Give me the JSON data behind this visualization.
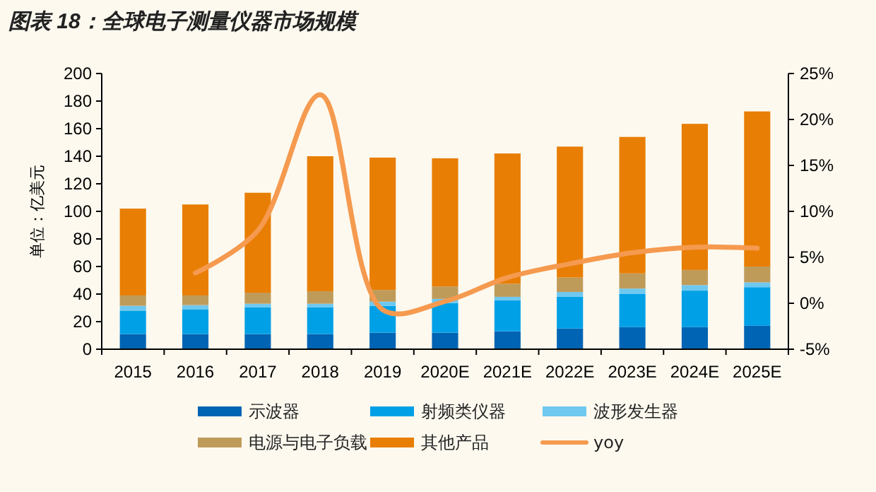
{
  "chart_data": {
    "type": "bar",
    "title": "图表 18：全球电子测量仪器市场规模",
    "ylabel": "单位：亿美元",
    "categories": [
      "2015",
      "2016",
      "2017",
      "2018",
      "2019",
      "2020E",
      "2021E",
      "2022E",
      "2023E",
      "2024E",
      "2025E"
    ],
    "stacked": true,
    "legend": "bottom",
    "series": [
      {
        "name": "示波器",
        "color": "#0064b4",
        "values": [
          11,
          11,
          11,
          11,
          12,
          12,
          13,
          15,
          16,
          16,
          17
        ]
      },
      {
        "name": "射频类仪器",
        "color": "#00a0e6",
        "values": [
          17,
          18,
          19.5,
          19.5,
          19.5,
          21.5,
          22.5,
          23,
          24,
          26.5,
          28
        ]
      },
      {
        "name": "波形发生器",
        "color": "#6ec8f0",
        "values": [
          3.5,
          3,
          2.5,
          2.5,
          3,
          3,
          2.5,
          3.5,
          4,
          4,
          3.5
        ]
      },
      {
        "name": "电源与电子负载",
        "color": "#bf9b5a",
        "values": [
          7.5,
          7,
          8,
          9,
          8.5,
          9,
          9.5,
          10.5,
          11,
          11,
          11.5
        ]
      },
      {
        "name": "其他产品",
        "color": "#e87e04",
        "values": [
          63,
          66,
          72.5,
          98,
          96,
          93,
          94.5,
          95,
          99,
          106,
          112.5
        ]
      },
      {
        "name": "yoy",
        "type": "line",
        "axis": "y2",
        "color": "#f59a4f",
        "values": [
          null,
          3.3,
          7.9,
          22.7,
          -0.7,
          0.2,
          2.8,
          4.3,
          5.5,
          6.1,
          6.0
        ]
      }
    ],
    "ylim": [
      0,
      200
    ],
    "yticks": [
      0,
      20,
      40,
      60,
      80,
      100,
      120,
      140,
      160,
      180,
      200
    ],
    "y2lim": [
      -5,
      25
    ],
    "y2ticks": [
      {
        "value": -5,
        "label": "-5%"
      },
      {
        "value": 0,
        "label": "0%"
      },
      {
        "value": 5,
        "label": "5%"
      },
      {
        "value": 10,
        "label": "10%"
      },
      {
        "value": 15,
        "label": "15%"
      },
      {
        "value": 20,
        "label": "20%"
      },
      {
        "value": 25,
        "label": "25%"
      }
    ]
  }
}
